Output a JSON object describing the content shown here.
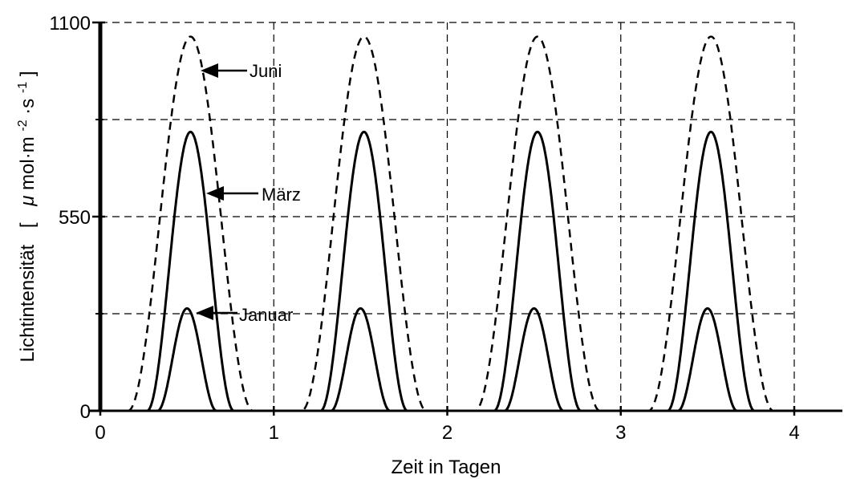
{
  "chart_data": {
    "type": "line",
    "title": "",
    "xlabel": "Zeit in Tagen",
    "ylabel": {
      "main": "Lichtintensität",
      "bracket_open": "[",
      "unit_mu": "μ",
      "unit_mol": "mol·m",
      "unit_exp1": "-2",
      "unit_dot_s": "·s",
      "unit_exp2": "-1",
      "bracket_close": "]"
    },
    "xlim": [
      0,
      4
    ],
    "ylim": [
      0,
      1100
    ],
    "x_ticks": [
      "0",
      "1",
      "2",
      "3",
      "4"
    ],
    "y_ticks": [
      "0",
      "550",
      "1100"
    ],
    "grid": true,
    "series": [
      {
        "name": "Juni",
        "style": "dashed",
        "peak": 1060,
        "halfwidth": 0.36,
        "peaks_x": [
          0.52,
          1.52,
          2.52,
          3.52
        ]
      },
      {
        "name": "März",
        "style": "solid",
        "peak": 790,
        "halfwidth": 0.25,
        "peaks_x": [
          0.52,
          1.52,
          2.52,
          3.52
        ]
      },
      {
        "name": "Januar",
        "style": "solid",
        "peak": 290,
        "halfwidth": 0.17,
        "peaks_x": [
          0.5,
          1.5,
          2.5,
          3.5
        ]
      }
    ]
  }
}
